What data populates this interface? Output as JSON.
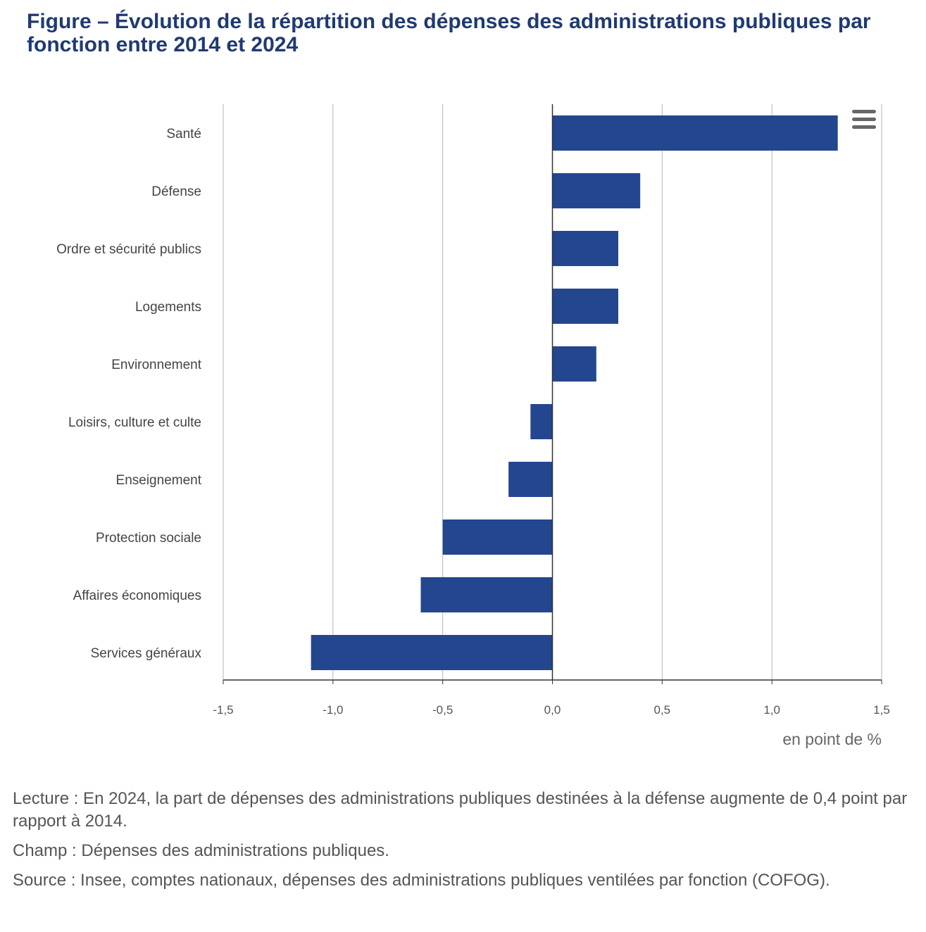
{
  "title": "Figure – Évolution de la répartition des dépenses des administrations publiques par fonction entre 2014 et 2024",
  "chart_data": {
    "type": "bar",
    "orientation": "horizontal",
    "categories": [
      "Santé",
      "Défense",
      "Ordre et sécurité publics",
      "Logements",
      "Environnement",
      "Loisirs, culture et culte",
      "Enseignement",
      "Protection sociale",
      "Affaires économiques",
      "Services généraux"
    ],
    "values": [
      1.3,
      0.4,
      0.3,
      0.3,
      0.2,
      -0.1,
      -0.2,
      -0.5,
      -0.6,
      -1.1
    ],
    "xlim": [
      -1.5,
      1.5
    ],
    "xticks": [
      -1.5,
      -1.0,
      -0.5,
      0.0,
      0.5,
      1.0,
      1.5
    ],
    "xtick_labels": [
      "-1,5",
      "-1,0",
      "-0,5",
      "0,0",
      "0,5",
      "1,0",
      "1,5"
    ],
    "xlabel": "en point de %",
    "bar_color": "#23468f",
    "grid": "vertical",
    "legend": "none"
  },
  "menu_icon": "hamburger-menu-icon",
  "notes": {
    "lecture": "Lecture : En 2024, la part de dépenses des administrations publiques destinées à la défense augmente de 0,4 point par rapport à 2014.",
    "champ": "Champ : Dépenses des administrations publiques.",
    "source": "Source : Insee, comptes nationaux, dépenses des administrations publiques ventilées par fonction (COFOG)."
  }
}
